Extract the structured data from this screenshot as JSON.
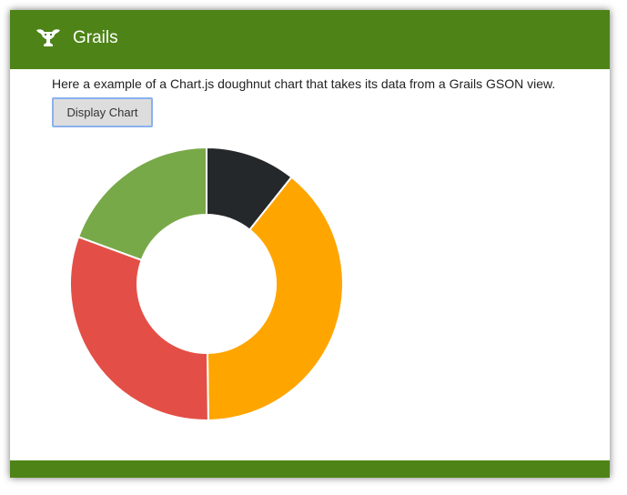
{
  "header": {
    "brand": "Grails",
    "logo_icon": "grails-logo-icon",
    "background_color": "#4e8417"
  },
  "main": {
    "intro_text": "Here a example of a Chart.js doughnut chart that takes its data from a Grails GSON view.",
    "display_button_label": "Display Chart"
  },
  "footer": {
    "background_color": "#4e8417"
  },
  "chart_data": {
    "type": "pie",
    "variant": "doughnut",
    "title": "",
    "legend": "none",
    "start": "top",
    "direction": "clockwise",
    "values": [
      10.7,
      39.1,
      30.8,
      19.4
    ],
    "colors": [
      "#24282b",
      "#ffa500",
      "#e34f46",
      "#78a948"
    ]
  }
}
